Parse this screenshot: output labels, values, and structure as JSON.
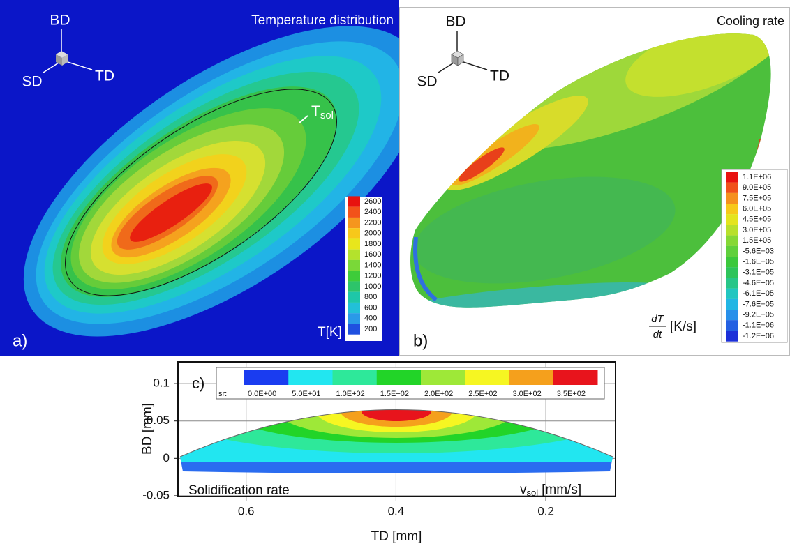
{
  "panel_a": {
    "label": "a)",
    "title": "Temperature distribution",
    "triad": {
      "up": "BD",
      "left": "SD",
      "right": "TD"
    },
    "isoline_label": {
      "main": "T",
      "sub": "sol"
    },
    "colorbar": {
      "unit": "T[K]",
      "levels": [
        2600,
        2400,
        2200,
        2000,
        1800,
        1600,
        1400,
        1200,
        1000,
        800,
        600,
        400,
        200
      ]
    }
  },
  "panel_b": {
    "label": "b)",
    "title": "Cooling rate",
    "triad": {
      "up": "BD",
      "left": "SD",
      "right": "TD"
    },
    "colorbar": {
      "unit": {
        "numerator": "dT",
        "denominator": "dt",
        "text": "[K/s]"
      },
      "levels": [
        "1.1E+06",
        "9.0E+05",
        "7.5E+05",
        "6.0E+05",
        "4.5E+05",
        "3.0E+05",
        "1.5E+05",
        "-5.6E+03",
        "-1.6E+05",
        "-3.1E+05",
        "-4.6E+05",
        "-6.1E+05",
        "-7.6E+05",
        "-9.2E+05",
        "-1.1E+06",
        "-1.2E+06"
      ]
    }
  },
  "panel_c": {
    "label": "c)",
    "annotation": "Solidification rate",
    "unit": {
      "main": "v",
      "sub": "sol",
      "text": "[mm/s]"
    },
    "xlabel": "TD [mm]",
    "ylabel": "BD [mm]",
    "xlim": [
      0.691,
      0.107
    ],
    "ylim": [
      -0.051,
      0.129
    ],
    "xticks": [
      0.6,
      0.4,
      0.2
    ],
    "yticks": [
      0.1,
      0.05,
      0,
      -0.05
    ],
    "legend": {
      "prefix": "sr:",
      "levels": [
        "0.0E+00",
        "5.0E+01",
        "1.0E+02",
        "1.5E+02",
        "2.0E+02",
        "2.5E+02",
        "3.0E+02",
        "3.5E+02"
      ]
    }
  }
}
